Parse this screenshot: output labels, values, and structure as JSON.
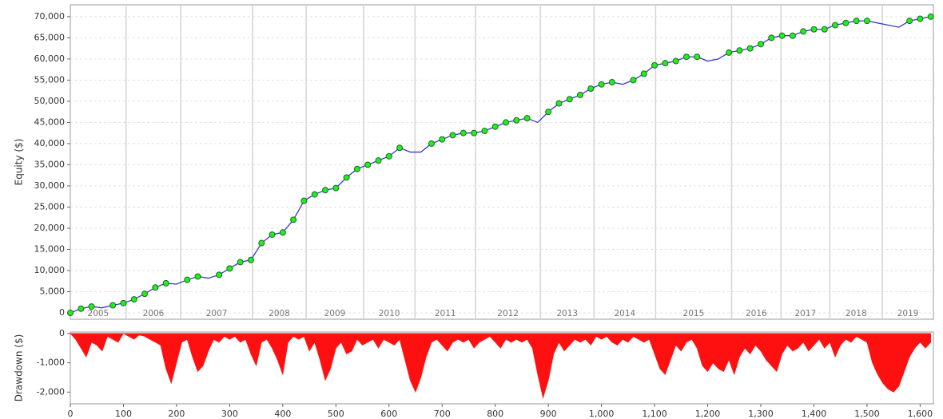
{
  "chart_data": [
    {
      "type": "line",
      "ylabel": "Equity ($)",
      "color": "#3838d0",
      "highlight_color": "#22ee22",
      "grid": true,
      "xlim": [
        0,
        1625
      ],
      "ylim": [
        -1500,
        72800
      ],
      "yticks": [
        0,
        {
          "value": 5000,
          "label": "5,000"
        },
        {
          "value": 10000,
          "label": "10,000"
        },
        {
          "value": 15000,
          "label": "15,000"
        },
        {
          "value": 20000,
          "label": "20,000"
        },
        {
          "value": 25000,
          "label": "25,000"
        },
        {
          "value": 30000,
          "label": "30,000"
        },
        {
          "value": 35000,
          "label": "35,000"
        },
        {
          "value": 40000,
          "label": "40,000"
        },
        {
          "value": 45000,
          "label": "45,000"
        },
        {
          "value": 50000,
          "label": "50,000"
        },
        {
          "value": 55000,
          "label": "55,000"
        },
        {
          "value": 60000,
          "label": "60,000"
        },
        {
          "value": 65000,
          "label": "65,000"
        },
        {
          "value": 70000,
          "label": "70,000"
        }
      ],
      "year_bands": [
        {
          "label": "2005",
          "start": 0,
          "end": 105
        },
        {
          "label": "2006",
          "start": 105,
          "end": 208
        },
        {
          "label": "2007",
          "start": 208,
          "end": 343
        },
        {
          "label": "2008",
          "start": 343,
          "end": 444
        },
        {
          "label": "2009",
          "start": 444,
          "end": 552
        },
        {
          "label": "2010",
          "start": 552,
          "end": 649
        },
        {
          "label": "2011",
          "start": 649,
          "end": 763
        },
        {
          "label": "2012",
          "start": 763,
          "end": 885
        },
        {
          "label": "2013",
          "start": 885,
          "end": 986
        },
        {
          "label": "2014",
          "start": 986,
          "end": 1102
        },
        {
          "label": "2015",
          "start": 1102,
          "end": 1245
        },
        {
          "label": "2016",
          "start": 1245,
          "end": 1338
        },
        {
          "label": "2017",
          "start": 1338,
          "end": 1430
        },
        {
          "label": "2018",
          "start": 1430,
          "end": 1529
        },
        {
          "label": "2019",
          "start": 1529,
          "end": 1625
        }
      ],
      "x": [
        0,
        20,
        40,
        60,
        80,
        100,
        120,
        140,
        160,
        180,
        200,
        220,
        240,
        260,
        280,
        300,
        320,
        340,
        360,
        380,
        400,
        420,
        440,
        460,
        480,
        500,
        520,
        540,
        560,
        580,
        600,
        620,
        640,
        660,
        680,
        700,
        720,
        740,
        760,
        780,
        800,
        820,
        840,
        860,
        880,
        900,
        920,
        940,
        960,
        980,
        1000,
        1020,
        1040,
        1060,
        1080,
        1100,
        1120,
        1140,
        1160,
        1180,
        1200,
        1220,
        1240,
        1260,
        1280,
        1300,
        1320,
        1340,
        1360,
        1380,
        1400,
        1420,
        1440,
        1460,
        1480,
        1500,
        1520,
        1540,
        1560,
        1580,
        1600,
        1620
      ],
      "values": [
        0,
        1000,
        1500,
        1200,
        1800,
        2300,
        3200,
        4500,
        6000,
        7000,
        6800,
        7800,
        8600,
        8200,
        9000,
        10500,
        12000,
        12500,
        16500,
        18500,
        19000,
        22000,
        26500,
        28000,
        29000,
        29500,
        32000,
        34000,
        35000,
        36000,
        37000,
        39000,
        38000,
        38000,
        40000,
        41000,
        42000,
        42500,
        42500,
        43000,
        44000,
        45000,
        45500,
        46000,
        45000,
        47500,
        49500,
        50500,
        51500,
        53000,
        54000,
        54500,
        54000,
        55000,
        56500,
        58500,
        59000,
        59500,
        60500,
        60500,
        59500,
        60000,
        61500,
        62000,
        62500,
        63500,
        65000,
        65500,
        65500,
        66500,
        67000,
        67000,
        68000,
        68500,
        69000,
        69000,
        68500,
        68000,
        67500,
        69000,
        69500,
        70000
      ]
    },
    {
      "type": "area",
      "ylabel": "Drawdown ($)",
      "color": "#ff1010",
      "xlim": [
        0,
        1625
      ],
      "ylim": [
        -2400,
        50
      ],
      "yticks": [
        0,
        {
          "value": -1000,
          "label": "-1,000"
        },
        {
          "value": -2000,
          "label": "-2,000"
        }
      ],
      "xticks": [
        0,
        100,
        200,
        300,
        400,
        500,
        600,
        700,
        800,
        900,
        {
          "value": 1000,
          "label": "1,000"
        },
        {
          "value": 1100,
          "label": "1,100"
        },
        {
          "value": 1200,
          "label": "1,200"
        },
        {
          "value": 1300,
          "label": "1,300"
        },
        {
          "value": 1400,
          "label": "1,400"
        },
        {
          "value": 1500,
          "label": "1,500"
        },
        {
          "value": 1600,
          "label": "1,600"
        }
      ],
      "x": [
        0,
        10,
        20,
        30,
        40,
        50,
        60,
        70,
        80,
        90,
        100,
        110,
        120,
        130,
        140,
        150,
        160,
        170,
        180,
        190,
        200,
        210,
        220,
        230,
        240,
        250,
        260,
        270,
        280,
        290,
        300,
        310,
        320,
        330,
        340,
        350,
        360,
        370,
        380,
        390,
        400,
        410,
        420,
        430,
        440,
        450,
        460,
        470,
        480,
        490,
        500,
        510,
        520,
        530,
        540,
        550,
        560,
        570,
        580,
        590,
        600,
        610,
        620,
        630,
        640,
        650,
        660,
        670,
        680,
        690,
        700,
        710,
        720,
        730,
        740,
        750,
        760,
        770,
        780,
        790,
        800,
        810,
        820,
        830,
        840,
        850,
        860,
        870,
        880,
        890,
        900,
        910,
        920,
        930,
        940,
        950,
        960,
        970,
        980,
        990,
        1000,
        1010,
        1020,
        1030,
        1040,
        1050,
        1060,
        1070,
        1080,
        1090,
        1100,
        1110,
        1120,
        1130,
        1140,
        1150,
        1160,
        1170,
        1180,
        1190,
        1200,
        1210,
        1220,
        1230,
        1240,
        1250,
        1260,
        1270,
        1280,
        1290,
        1300,
        1310,
        1320,
        1330,
        1340,
        1350,
        1360,
        1370,
        1380,
        1390,
        1400,
        1410,
        1420,
        1430,
        1440,
        1450,
        1460,
        1470,
        1480,
        1490,
        1500,
        1510,
        1520,
        1530,
        1540,
        1550,
        1560,
        1570,
        1580,
        1590,
        1600,
        1610,
        1620
      ],
      "values": [
        0,
        -200,
        -500,
        -800,
        -300,
        -400,
        -600,
        -100,
        -200,
        -300,
        0,
        -100,
        -200,
        -50,
        -100,
        -200,
        -300,
        -400,
        -1200,
        -1700,
        -1000,
        -300,
        -200,
        -800,
        -1300,
        -1100,
        -600,
        -200,
        -300,
        -100,
        -200,
        -100,
        -300,
        -200,
        -700,
        -1100,
        -300,
        -200,
        -500,
        -900,
        -1400,
        -300,
        -100,
        -200,
        -100,
        -600,
        -300,
        -900,
        -1600,
        -1200,
        -500,
        -300,
        -700,
        -600,
        -200,
        -400,
        -300,
        -200,
        -500,
        -200,
        -300,
        -400,
        -200,
        -900,
        -1600,
        -2000,
        -1500,
        -800,
        -300,
        -200,
        -400,
        -600,
        -300,
        -200,
        -300,
        -200,
        -500,
        -300,
        -200,
        -100,
        -300,
        -500,
        -200,
        -300,
        -200,
        -300,
        -200,
        -500,
        -1400,
        -2200,
        -1600,
        -700,
        -300,
        -600,
        -400,
        -200,
        -300,
        -200,
        -400,
        -100,
        -200,
        -100,
        -300,
        -400,
        -200,
        -300,
        -100,
        -200,
        -300,
        -200,
        -700,
        -1200,
        -1400,
        -900,
        -400,
        -600,
        -300,
        -200,
        -500,
        -1100,
        -1300,
        -1000,
        -1200,
        -1300,
        -900,
        -1400,
        -800,
        -500,
        -700,
        -400,
        -600,
        -900,
        -1100,
        -1300,
        -700,
        -400,
        -600,
        -500,
        -300,
        -600,
        -400,
        -200,
        -500,
        -300,
        -800,
        -400,
        -200,
        -300,
        -100,
        -200,
        -300,
        -1000,
        -1400,
        -1700,
        -1900,
        -2000,
        -1800,
        -1300,
        -800,
        -500,
        -300,
        -500,
        -300
      ]
    }
  ]
}
